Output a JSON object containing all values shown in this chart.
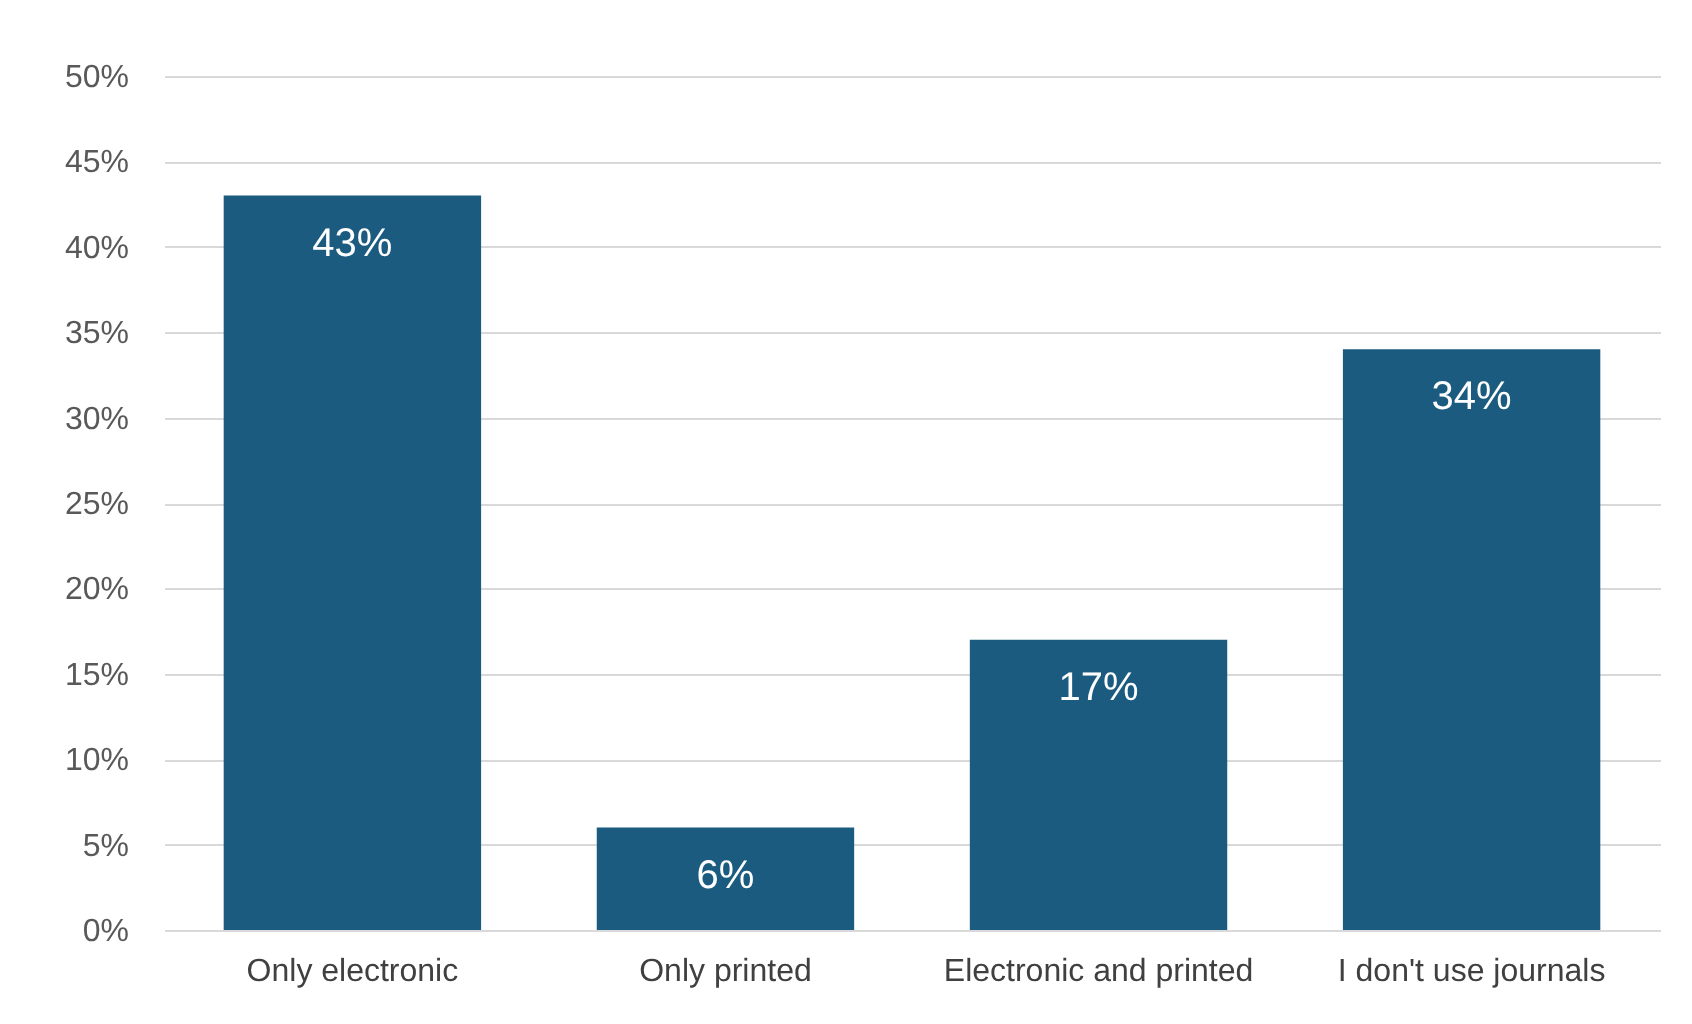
{
  "chart_data": {
    "type": "bar",
    "categories": [
      "Only electronic",
      "Only printed",
      "Electronic and printed",
      "I don't use journals"
    ],
    "values": [
      43,
      6,
      17,
      34
    ],
    "color": "#1b5b80",
    "value_labels": [
      "43%",
      "6%",
      "17%",
      "34%"
    ],
    "ylim": [
      0,
      50
    ],
    "yticks": [
      {
        "value": 0,
        "label": "0%"
      },
      {
        "value": 5,
        "label": "5%"
      },
      {
        "value": 10,
        "label": "10%"
      },
      {
        "value": 15,
        "label": "15%"
      },
      {
        "value": 20,
        "label": "20%"
      },
      {
        "value": 25,
        "label": "25%"
      },
      {
        "value": 30,
        "label": "30%"
      },
      {
        "value": 35,
        "label": "35%"
      },
      {
        "value": 40,
        "label": "40%"
      },
      {
        "value": 45,
        "label": "45%"
      },
      {
        "value": 50,
        "label": "50%"
      }
    ],
    "grid": "y"
  }
}
